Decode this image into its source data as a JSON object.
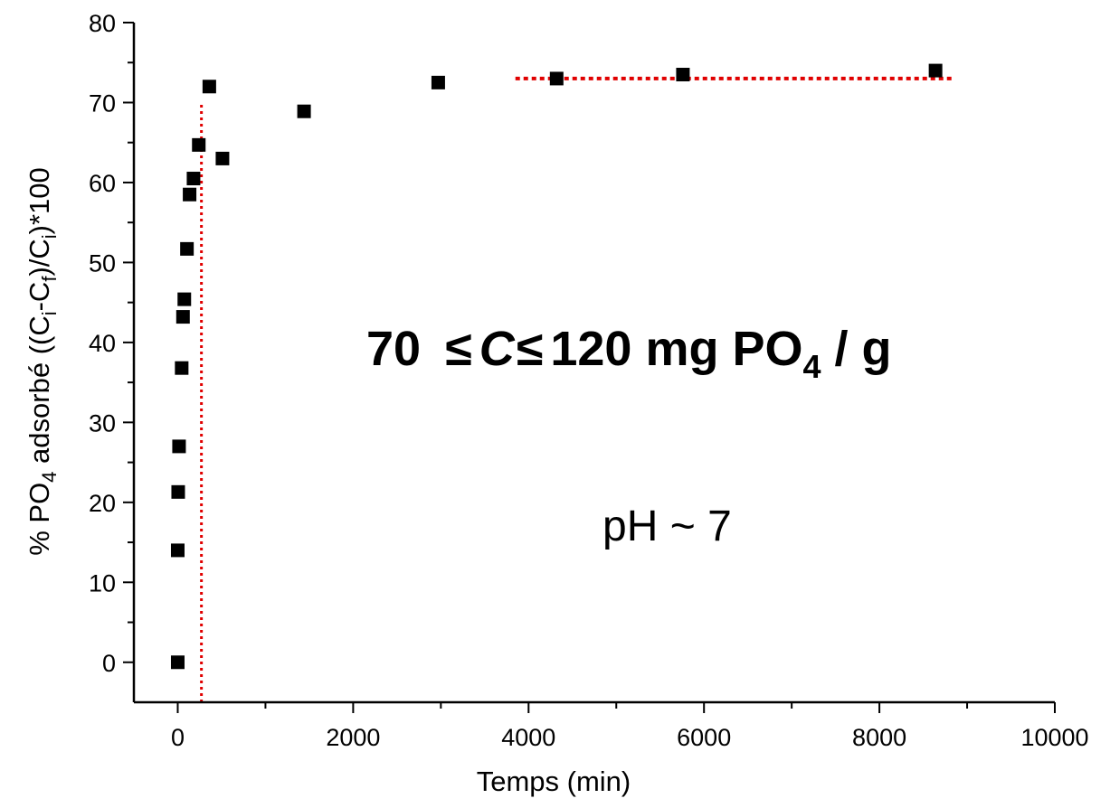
{
  "chart_data": {
    "type": "scatter",
    "title": "",
    "xlabel": "Temps (min)",
    "ylabel": {
      "pre": "% PO",
      "sub1": "4",
      "mid1": " adsorbé ((C",
      "sub2": "i",
      "mid2": "-C",
      "sub3": "f",
      "mid3": ")/C",
      "sub4": "i",
      "post": ")*100"
    },
    "xlim": [
      -500,
      10000
    ],
    "ylim": [
      -5,
      80
    ],
    "x_ticks": [
      "0",
      "2000",
      "4000",
      "6000",
      "8000",
      "10000"
    ],
    "y_ticks": [
      "0",
      "10",
      "20",
      "30",
      "40",
      "50",
      "60",
      "70",
      "80"
    ],
    "series": [
      {
        "marker": "square",
        "color": "#000000",
        "points": [
          {
            "x": 0,
            "y": 0
          },
          {
            "x": 0,
            "y": 14
          },
          {
            "x": 5,
            "y": 21.3
          },
          {
            "x": 15,
            "y": 27
          },
          {
            "x": 45,
            "y": 36.8
          },
          {
            "x": 60,
            "y": 43.2
          },
          {
            "x": 75,
            "y": 45.4
          },
          {
            "x": 105,
            "y": 51.7
          },
          {
            "x": 135,
            "y": 58.5
          },
          {
            "x": 180,
            "y": 60.5
          },
          {
            "x": 240,
            "y": 64.7
          },
          {
            "x": 360,
            "y": 72
          },
          {
            "x": 510,
            "y": 63
          },
          {
            "x": 1440,
            "y": 68.9
          },
          {
            "x": 2970,
            "y": 72.5
          },
          {
            "x": 4320,
            "y": 73
          },
          {
            "x": 5760,
            "y": 73.5
          },
          {
            "x": 8640,
            "y": 74
          }
        ]
      }
    ],
    "reference_lines": [
      {
        "orientation": "vertical",
        "x": 270,
        "y_from": -5,
        "y_to": 70,
        "color": "#e00000",
        "style": "dotted"
      },
      {
        "orientation": "horizontal",
        "y": 73,
        "x_from": 3850,
        "x_to": 8850,
        "color": "#e00000",
        "style": "dotted"
      }
    ],
    "annotations": {
      "range": {
        "part1": "70 ",
        "le1": "≤",
        "c": "C",
        "le2": "≤",
        "part2": "120 mg PO",
        "sub": "4",
        "part3": " / g"
      },
      "ph": "pH ~ 7"
    },
    "grid": false,
    "legend": "none"
  }
}
